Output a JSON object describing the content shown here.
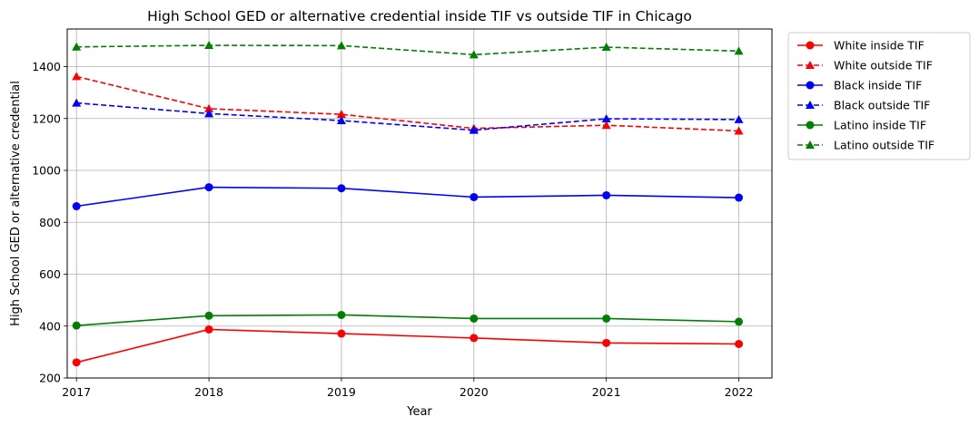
{
  "chart_data": {
    "type": "line",
    "title": "High School GED or alternative credential inside TIF vs outside TIF in Chicago",
    "xlabel": "Year",
    "ylabel": "High School GED or alternative credential",
    "x": [
      "2017",
      "2018",
      "2019",
      "2020",
      "2021",
      "2022"
    ],
    "xlim": [
      2016.93,
      2022.25
    ],
    "ylim": [
      200,
      1545
    ],
    "yticks": [
      200,
      400,
      600,
      800,
      1000,
      1200,
      1400
    ],
    "grid": true,
    "legend_position": "outside-right",
    "series": [
      {
        "name": "White inside TIF",
        "color": "#ff0000",
        "dash": "solid",
        "marker": "circle",
        "values": [
          260,
          387,
          371,
          354,
          335,
          331
        ]
      },
      {
        "name": "White outside TIF",
        "color": "#ff0000",
        "dash": "dashed",
        "marker": "triangle",
        "values": [
          1362,
          1238,
          1216,
          1162,
          1174,
          1152
        ]
      },
      {
        "name": "Black inside TIF",
        "color": "#0000ff",
        "dash": "solid",
        "marker": "circle",
        "values": [
          862,
          935,
          931,
          897,
          904,
          895
        ]
      },
      {
        "name": "Black outside TIF",
        "color": "#0000ff",
        "dash": "dashed",
        "marker": "triangle",
        "values": [
          1260,
          1219,
          1192,
          1155,
          1199,
          1196
        ]
      },
      {
        "name": "Latino inside TIF",
        "color": "#008000",
        "dash": "solid",
        "marker": "circle",
        "values": [
          402,
          440,
          443,
          429,
          429,
          417
        ]
      },
      {
        "name": "Latino outside TIF",
        "color": "#008000",
        "dash": "dashed",
        "marker": "triangle",
        "values": [
          1476,
          1482,
          1481,
          1446,
          1475,
          1460
        ]
      }
    ]
  }
}
